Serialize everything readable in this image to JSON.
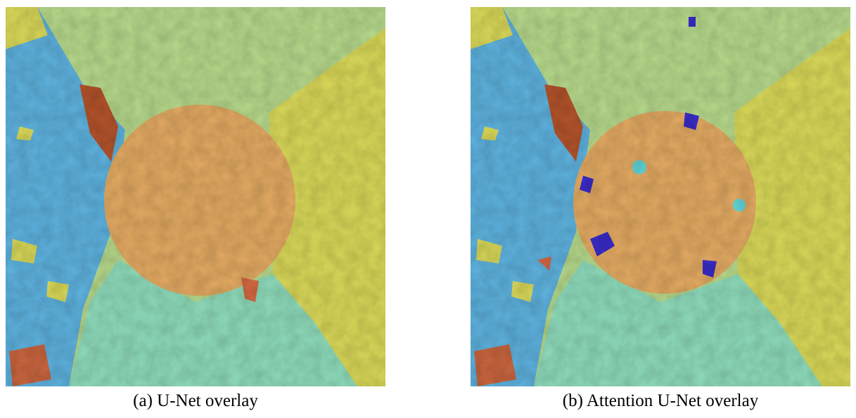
{
  "figure": {
    "subfigures": [
      {
        "caption": "(a) U-Net overlay"
      },
      {
        "caption": "(b) Attention U-Net overlay"
      }
    ]
  }
}
